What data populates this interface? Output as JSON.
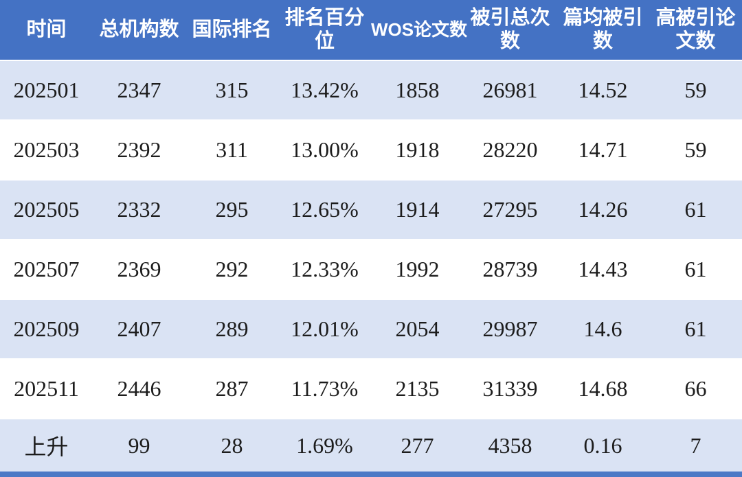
{
  "table": {
    "columns": [
      "时间",
      "总机构数",
      "国际排名",
      "排名百分位",
      "WOS论文数",
      "被引总次数",
      "篇均被引数",
      "高被引论文数"
    ],
    "rows": [
      [
        "202501",
        "2347",
        "315",
        "13.42%",
        "1858",
        "26981",
        "14.52",
        "59"
      ],
      [
        "202503",
        "2392",
        "311",
        "13.00%",
        "1918",
        "28220",
        "14.71",
        "59"
      ],
      [
        "202505",
        "2332",
        "295",
        "12.65%",
        "1914",
        "27295",
        "14.26",
        "61"
      ],
      [
        "202507",
        "2369",
        "292",
        "12.33%",
        "1992",
        "28739",
        "14.43",
        "61"
      ],
      [
        "202509",
        "2407",
        "289",
        "12.01%",
        "2054",
        "29987",
        "14.6",
        "61"
      ],
      [
        "202511",
        "2446",
        "287",
        "11.73%",
        "2135",
        "31339",
        "14.68",
        "66"
      ],
      [
        "上升",
        "99",
        "28",
        "1.69%",
        "277",
        "4358",
        "0.16",
        "7"
      ]
    ]
  },
  "colors": {
    "header_bg": "#4472C4",
    "header_text": "#FFFFFF",
    "row_alt_bg": "#DAE3F4",
    "row_bg": "#FFFFFF",
    "cell_text": "#1C1C1C",
    "bottom_strip": "#4C79C6"
  }
}
